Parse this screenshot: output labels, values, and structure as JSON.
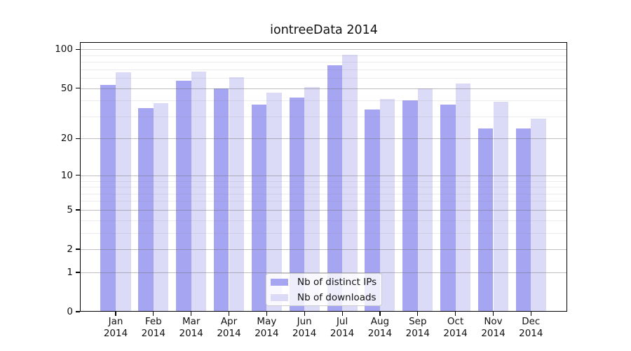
{
  "figure": {
    "title": "iontreeData 2014",
    "background_color": "#ffffff"
  },
  "chart_data": {
    "type": "bar",
    "title": "iontreeData 2014",
    "categories": [
      "Jan 2014",
      "Feb 2014",
      "Mar 2014",
      "Apr 2014",
      "May 2014",
      "Jun 2014",
      "Jul 2014",
      "Aug 2014",
      "Sep 2014",
      "Oct 2014",
      "Nov 2014",
      "Dec 2014"
    ],
    "series": [
      {
        "name": "Nb of distinct IPs",
        "color": "#a5a5f1",
        "values": [
          53,
          35,
          57,
          50,
          37,
          42,
          75,
          34,
          40,
          37,
          24,
          24
        ]
      },
      {
        "name": "Nb of downloads",
        "color": "#dbdbf8",
        "values": [
          66,
          38,
          67,
          61,
          46,
          51,
          91,
          41,
          50,
          54,
          39,
          29
        ]
      }
    ],
    "yscale": "symlog (y proportional to ln(1+value))",
    "ylim": [
      0,
      113.5
    ],
    "y_ticks": [
      0,
      1,
      2,
      5,
      10,
      20,
      50,
      100
    ],
    "y_minor_gridlines": [
      3,
      4,
      6,
      7,
      8,
      9,
      30,
      40,
      60,
      70,
      80,
      90
    ],
    "grid": true,
    "grid_major_color": "#c6c6c6",
    "grid_minor_color": "#ebebeb",
    "legend_position": "lower center (inside plot)"
  }
}
